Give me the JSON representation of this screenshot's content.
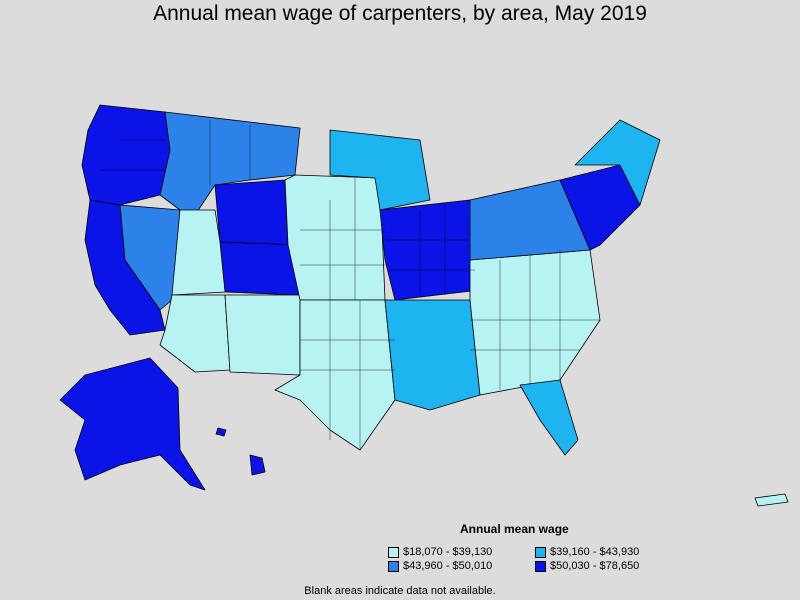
{
  "title": "Annual mean wage of carpenters, by area, May 2019",
  "legend": {
    "title": "Annual mean wage",
    "items": [
      {
        "label": "$18,070 - $39,130",
        "color": "#b8f3f3"
      },
      {
        "label": "$39,160 - $43,930",
        "color": "#1eb4f0"
      },
      {
        "label": "$43,960 - $50,010",
        "color": "#2d82ea"
      },
      {
        "label": "$50,030 - $78,650",
        "color": "#0a14e6"
      }
    ]
  },
  "footnote": "Blank areas indicate data not available.",
  "regions": [
    {
      "name": "Pacific Northwest coast",
      "class": 3
    },
    {
      "name": "California",
      "class": 3
    },
    {
      "name": "Nevada",
      "class": 2
    },
    {
      "name": "Idaho and Montana",
      "class": 2
    },
    {
      "name": "Wyoming",
      "class": 3
    },
    {
      "name": "Colorado",
      "class": 3
    },
    {
      "name": "Utah",
      "class": 0
    },
    {
      "name": "Arizona",
      "class": 0
    },
    {
      "name": "New Mexico",
      "class": 0
    },
    {
      "name": "Great Plains",
      "class": 0
    },
    {
      "name": "Minnesota",
      "class": 1
    },
    {
      "name": "Illinois and Missouri",
      "class": 3
    },
    {
      "name": "Texas",
      "class": 0
    },
    {
      "name": "Gulf coast",
      "class": 1
    },
    {
      "name": "Southeast",
      "class": 0
    },
    {
      "name": "Florida",
      "class": 1
    },
    {
      "name": "Mid-Atlantic",
      "class": 2
    },
    {
      "name": "Northeast corridor",
      "class": 3
    },
    {
      "name": "Maine and Vermont",
      "class": 1
    },
    {
      "name": "Alaska",
      "class": 3
    },
    {
      "name": "Hawaii",
      "class": 3
    },
    {
      "name": "Puerto Rico",
      "class": 0
    }
  ]
}
